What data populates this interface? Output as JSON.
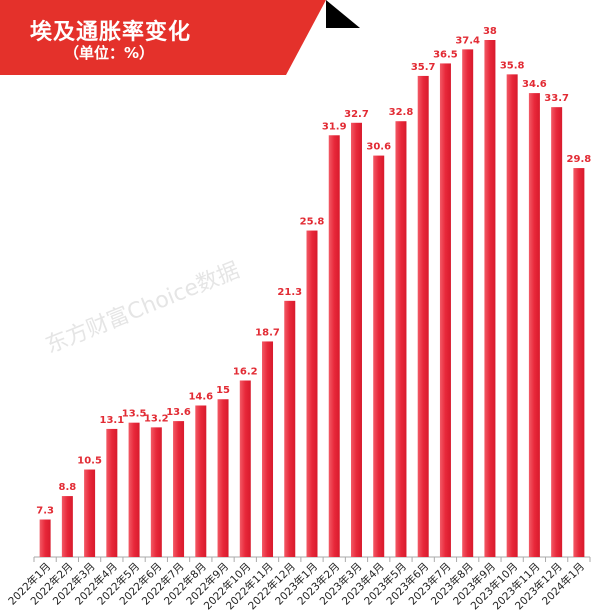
{
  "header": {
    "title": "埃及通胀率变化",
    "subtitle": "（单位：%）"
  },
  "watermark": "东方财富Choice数据",
  "colors": {
    "banner": "#e4312b",
    "bar": "#e8283a",
    "label": "#e22b34"
  },
  "chart_data": {
    "type": "bar",
    "title": "埃及通胀率变化",
    "subtitle": "（单位：%）",
    "categories": [
      "2022年1月",
      "2022年2月",
      "2022年3月",
      "2022年4月",
      "2022年5月",
      "2022年6月",
      "2022年7月",
      "2022年8月",
      "2022年9月",
      "2022年10月",
      "2022年11月",
      "2022年12月",
      "2023年1月",
      "2023年2月",
      "2023年3月",
      "2023年4月",
      "2023年5月",
      "2023年6月",
      "2023年7月",
      "2023年8月",
      "2023年9月",
      "2023年10月",
      "2023年11月",
      "2023年12月",
      "2024年1月"
    ],
    "values": [
      7.3,
      8.8,
      10.5,
      13.1,
      13.5,
      13.2,
      13.6,
      14.6,
      15,
      16.2,
      18.7,
      21.3,
      25.8,
      31.9,
      32.7,
      30.6,
      32.8,
      35.7,
      36.5,
      37.4,
      38,
      35.8,
      34.6,
      33.7,
      29.8
    ],
    "ylim": [
      4.9,
      38
    ],
    "grid": false,
    "data_labels": true
  }
}
